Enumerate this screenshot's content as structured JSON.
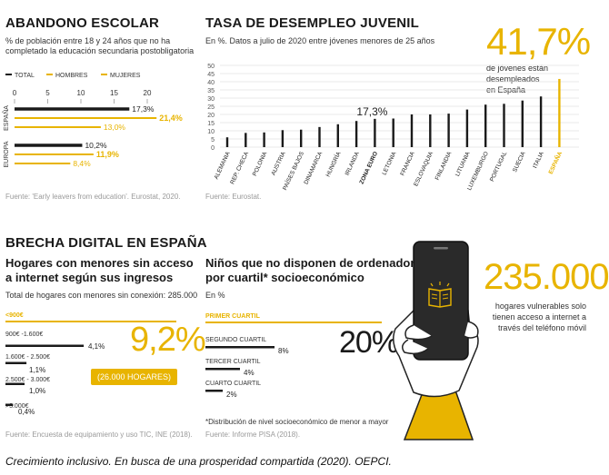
{
  "colors": {
    "accent": "#e8b400",
    "dark": "#1a1a1a",
    "grey": "#8c8c8c"
  },
  "abandono": {
    "title": "ABANDONO ESCOLAR",
    "subtitle_l1": "% de población entre 18 y 24 años que no ha",
    "subtitle_l2": "completado la educación secundaria postobligatoria",
    "source": "Fuente: 'Early leavers from education'. Eurostat, 2020."
  },
  "tasa": {
    "title": "TASA DE DESEMPLEO JUVENIL",
    "subtitle": "En %. Datos a julio de 2020 entre jóvenes menores de 25 años",
    "highlight": "41,7%",
    "note_l1": "de jóvenes están",
    "note_l2": "desempleados",
    "note_l3": "en España",
    "zona_label": "17,3%",
    "source": "Fuente: Eurostat."
  },
  "brecha": {
    "title": "BRECHA DIGITAL EN ESPAÑA",
    "h_l1": "Hogares con menores sin acceso",
    "h_l2": "a internet según sus ingresos",
    "total": "Total de hogares con menores sin conexión: 285.000",
    "big": "9,2%",
    "badge": "(26.000 HOGARES)",
    "source": "Fuente: Encuesta de equipamiento y uso TIC, INE (2018)."
  },
  "ordenador": {
    "h_l1": "Niños que no disponen de ordenador",
    "h_l2": "por cuartil* socioeconómico",
    "unit": "En %",
    "big": "20%",
    "footnote": "*Distribución de nivel socioeconómico de menor a mayor",
    "source": "Fuente: Informe PISA (2018)."
  },
  "movil": {
    "big": "235.000",
    "t_l1": "hogares vulnerables solo",
    "t_l2": "tienen acceso a internet a",
    "t_l3": "través del teléfono móvil"
  },
  "caption_italic": "Crecimiento inclusivo. En busca de una prosperidad compartida",
  "caption_rest": " (2020). OEPCI.",
  "chart_data": [
    {
      "type": "bar",
      "title": "ABANDONO ESCOLAR",
      "orientation": "horizontal",
      "categories": [
        "ESPAÑA",
        "EUROPA"
      ],
      "series": [
        {
          "name": "TOTAL",
          "values": [
            17.3,
            10.2
          ],
          "labels": [
            "17,3%",
            "10,2%"
          ]
        },
        {
          "name": "HOMBRES",
          "values": [
            21.4,
            11.9
          ],
          "labels": [
            "21,4%",
            "11,9%"
          ]
        },
        {
          "name": "MUJERES",
          "values": [
            13.0,
            8.4
          ],
          "labels": [
            "13,0%",
            "8,4%"
          ]
        }
      ],
      "xlim": [
        0,
        25
      ],
      "ticks": [
        "0",
        "5",
        "10",
        "15",
        "20"
      ],
      "legend": "top"
    },
    {
      "type": "bar",
      "title": "TASA DE DESEMPLEO JUVENIL",
      "categories": [
        "ALEMANIA",
        "REP. CHECA",
        "POLONIA",
        "AUSTRIA",
        "PAÍSES BAJOS",
        "DINAMARCA",
        "HUNGRÍA",
        "IRLANDA",
        "ZONA EURO",
        "LETONIA",
        "FRANCIA",
        "ESLOVAQUIA",
        "FINLANDIA",
        "LITUANIA",
        "LUXEMBURGO",
        "PORTUGAL",
        "SUECIA",
        "ITALIA",
        "ESPAÑA"
      ],
      "values": [
        6,
        8.7,
        9,
        10.4,
        10.7,
        12.3,
        14,
        16,
        17.3,
        17.5,
        20,
        20,
        20.5,
        23,
        26,
        26.5,
        28.5,
        31,
        41.7
      ],
      "ylim": [
        0,
        50
      ],
      "yticks": [
        "0",
        "5",
        "10",
        "15",
        "20",
        "25",
        "30",
        "35",
        "40",
        "45",
        "50"
      ],
      "grid": true
    },
    {
      "type": "bar",
      "title": "Hogares con menores sin acceso a internet según sus ingresos",
      "orientation": "horizontal",
      "categories": [
        "<900€",
        "900€ -1.600€",
        "1.600€ - 2.500€",
        "2.500€ - 3.000€",
        ">3.000€"
      ],
      "values": [
        9.2,
        4.1,
        1.1,
        1.0,
        0.4
      ],
      "labels": [
        "",
        "4,1%",
        "1,1%",
        "1,0%",
        "0,4%"
      ]
    },
    {
      "type": "bar",
      "title": "Niños que no disponen de ordenador por cuartil* socioeconómico",
      "orientation": "horizontal",
      "categories": [
        "PRIMER CUARTIL",
        "SEGUNDO CUARTIL",
        "TERCER CUARTIL",
        "CUARTO CUARTIL"
      ],
      "values": [
        20,
        8,
        4,
        2
      ],
      "labels": [
        "",
        "8%",
        "4%",
        "2%"
      ]
    }
  ]
}
